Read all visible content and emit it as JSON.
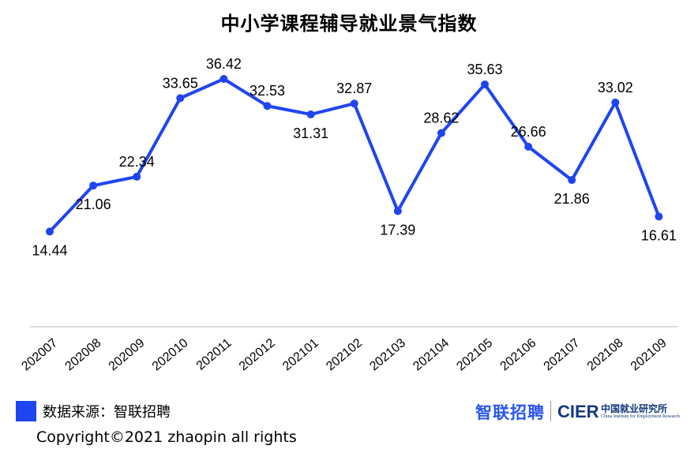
{
  "title": "中小学课程辅导就业景气指数",
  "chart_data": {
    "type": "line",
    "title": "中小学课程辅导就业景气指数",
    "categories": [
      "202007",
      "202008",
      "202009",
      "202010",
      "202011",
      "202012",
      "202101",
      "202102",
      "202103",
      "202104",
      "202105",
      "202106",
      "202107",
      "202108",
      "202109"
    ],
    "values": [
      14.44,
      21.06,
      22.34,
      33.65,
      36.42,
      32.53,
      31.31,
      32.87,
      17.39,
      28.62,
      35.63,
      26.66,
      21.86,
      33.02,
      16.61
    ],
    "label_positions": [
      "below",
      "below",
      "above",
      "above",
      "above",
      "above",
      "below",
      "above",
      "below",
      "above",
      "above",
      "above",
      "below",
      "above",
      "below"
    ],
    "value_labels": [
      "14.44",
      "21.06",
      "22.34",
      "33.65",
      "36.42",
      "32.53",
      "31.31",
      "32.87",
      "17.39",
      "28.62",
      "35.63",
      "26.66",
      "21.86",
      "33.02",
      "16.61"
    ],
    "ylim": [
      0,
      40
    ],
    "grid": false,
    "line_color": "#1f45f0"
  },
  "footer": {
    "source_label": "数据来源：智联招聘",
    "copyright": "Copyright©2021 zhaopin all rights",
    "logo_zhaopin": "智联招聘",
    "logo_cier": "CIER",
    "logo_cier_cn": "中国就业研究所",
    "logo_cier_en": "China Institute for Employment Research"
  }
}
